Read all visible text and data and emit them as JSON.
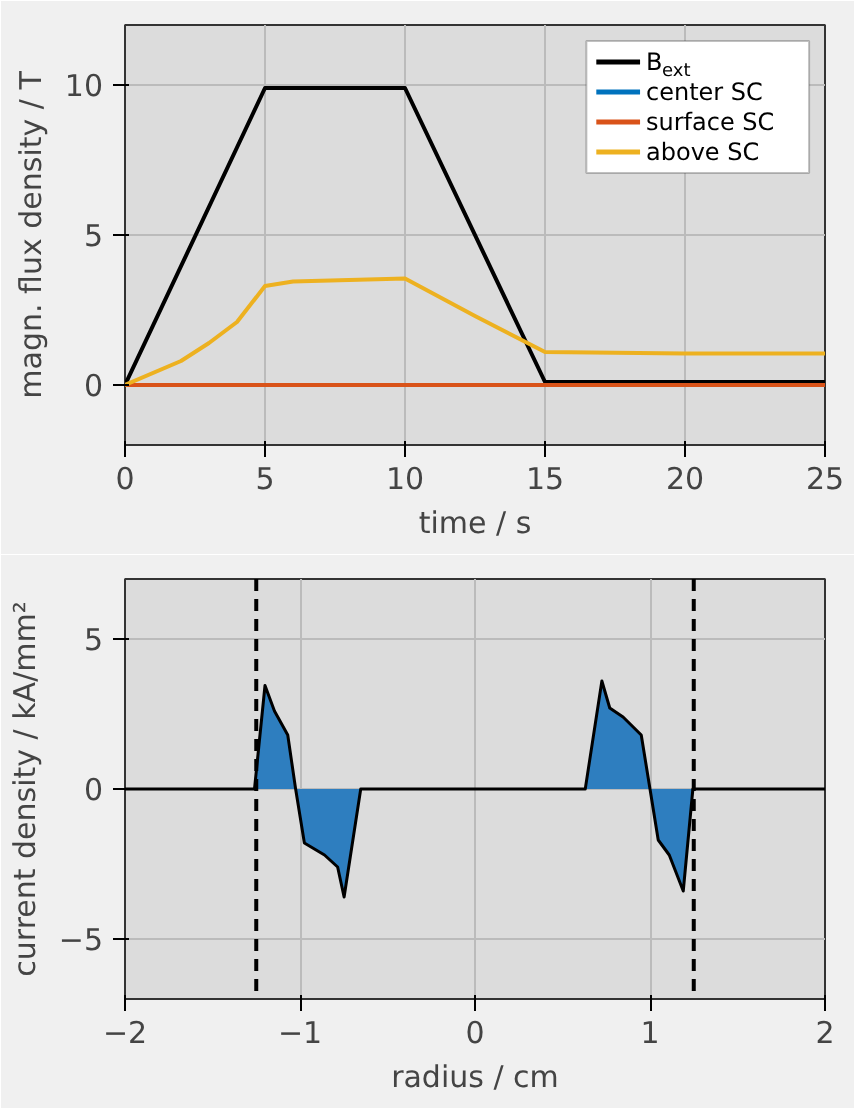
{
  "chart_data": [
    {
      "type": "line",
      "xlabel": "time / s",
      "ylabel": "magn. flux density / T",
      "xlim": [
        0,
        25
      ],
      "ylim": [
        -2,
        12
      ],
      "xticks": [
        0,
        5,
        10,
        15,
        20,
        25
      ],
      "yticks": [
        0,
        5,
        10
      ],
      "grid": true,
      "legend": "top right",
      "series": [
        {
          "name": "B$_{ext}$",
          "color": "#000000",
          "x": [
            0,
            5,
            10,
            15,
            25
          ],
          "values": [
            0,
            9.9,
            9.9,
            0.1,
            0.1
          ]
        },
        {
          "name": "center SC",
          "color": "#0072bd"
        },
        {
          "name": "surface SC",
          "color": "#d95319",
          "x": [
            0,
            25
          ],
          "values": [
            0,
            0
          ]
        },
        {
          "name": "above SC",
          "color": "#edb120",
          "x": [
            0,
            2,
            3,
            4,
            5,
            6,
            8,
            10,
            12.5,
            15,
            20,
            25
          ],
          "values": [
            0,
            0.8,
            1.4,
            2.1,
            3.3,
            3.45,
            3.5,
            3.55,
            2.3,
            1.1,
            1.05,
            1.05
          ]
        }
      ]
    },
    {
      "type": "area",
      "xlabel": "radius / cm",
      "ylabel": "current density / kA/mm²",
      "xlim": [
        -2,
        2
      ],
      "ylim": [
        -7,
        7
      ],
      "xticks": [
        -2,
        -1,
        0,
        1,
        2
      ],
      "yticks": [
        -5,
        0,
        5
      ],
      "grid": true,
      "series": [
        {
          "color": "#2e7ebf",
          "x": [
            -2,
            -1.26,
            -1.2,
            -1.146,
            -1.07,
            -1.025,
            -0.975,
            -0.86,
            -0.785,
            -0.748,
            -0.653,
            0,
            0.63,
            0.725,
            0.77,
            0.846,
            0.95,
            1.0,
            1.047,
            1.11,
            1.17,
            1.19,
            1.245,
            2
          ],
          "values": [
            0,
            0,
            3.45,
            2.6,
            1.8,
            0,
            -1.8,
            -2.2,
            -2.6,
            -3.6,
            0,
            0,
            0,
            3.6,
            2.7,
            2.4,
            1.8,
            0,
            -1.7,
            -2.2,
            -3.1,
            -3.4,
            0,
            0
          ]
        }
      ],
      "ref_lines": [
        {
          "axis": "x",
          "value": -1.25,
          "color": "#000000",
          "line_style": "dashed"
        },
        {
          "axis": "x",
          "value": 1.25,
          "color": "#000000",
          "line_style": "dashed"
        }
      ]
    }
  ]
}
